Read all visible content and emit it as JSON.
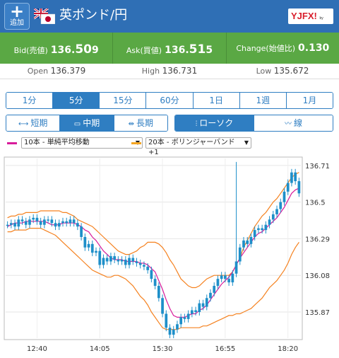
{
  "header": {
    "add_plus": "+",
    "add_label": "追加",
    "pair_title": "英ポンド/円",
    "logo_text": "YJFX!",
    "logo_sub": "by yahoo"
  },
  "quotes": [
    {
      "label": "Bid(売値)",
      "value_prefix": "136.",
      "value_big": "50",
      "value_suffix": "9"
    },
    {
      "label": "Ask(買値)",
      "value_prefix": "136.",
      "value_big": "51",
      "value_suffix": "5"
    },
    {
      "label": "Change(始値比)",
      "value_prefix": "0.130",
      "value_big": "",
      "value_suffix": ""
    }
  ],
  "ohl": [
    {
      "label": "Open",
      "value": "136.379"
    },
    {
      "label": "High",
      "value": "136.731"
    },
    {
      "label": "Low",
      "value": "135.672"
    }
  ],
  "timeframes": [
    "1分",
    "5分",
    "15分",
    "60分",
    "1日",
    "1週",
    "1月"
  ],
  "active_timeframe": 1,
  "spans": [
    {
      "icon": "⟷",
      "label": "短期"
    },
    {
      "icon": "▭",
      "label": "中期"
    },
    {
      "icon": "⇹",
      "label": "長期"
    }
  ],
  "active_span": 1,
  "chart_types": [
    {
      "icon": "candle-icon",
      "glyph": "⫶",
      "label": "ローソク"
    },
    {
      "icon": "line-icon",
      "glyph": "〰",
      "label": "線"
    }
  ],
  "active_chart_type": 0,
  "indicators": {
    "ma": {
      "color": "#d81b9b",
      "label": "10本 - 単純平均移動"
    },
    "bb": {
      "color": "#f5a623",
      "label": "20本 - ボリンジャーバンド+1"
    }
  },
  "colors": {
    "header_bg": "#2f6fb5",
    "quote_bg": "#5aa844",
    "accent": "#2f7ec2",
    "candle": "#1e8fc9",
    "ma_line": "#d81b9b",
    "bb_line": "#f58220"
  },
  "chart_data": {
    "type": "line",
    "y_ticks": [
      "136.71",
      "136.5",
      "136.29",
      "136.08",
      "135.87"
    ],
    "x_ticks": [
      "12:40",
      "14:05",
      "15:30",
      "16:55",
      "18:20"
    ],
    "ylim": [
      135.72,
      136.75
    ],
    "price": [
      136.37,
      136.38,
      136.36,
      136.4,
      136.39,
      136.37,
      136.4,
      136.41,
      136.39,
      136.37,
      136.4,
      136.4,
      136.38,
      136.36,
      136.38,
      136.39,
      136.38,
      136.4,
      136.38,
      136.36,
      136.3,
      136.24,
      136.26,
      136.21,
      136.22,
      136.14,
      136.18,
      136.16,
      136.19,
      136.17,
      136.16,
      136.17,
      136.14,
      136.18,
      136.16,
      136.15,
      136.14,
      136.13,
      136.11,
      136.06,
      136.02,
      135.95,
      135.86,
      135.78,
      135.74,
      135.77,
      135.8,
      135.84,
      135.83,
      135.86,
      135.88,
      135.87,
      135.92,
      135.9,
      135.95,
      135.98,
      136.02,
      136.06,
      136.08,
      136.06,
      136.04,
      136.09,
      136.16,
      136.24,
      136.28,
      136.26,
      136.3,
      136.34,
      136.35,
      136.34,
      136.37,
      136.4,
      136.43,
      136.46,
      136.5,
      136.56,
      136.61,
      136.67,
      136.62,
      136.55
    ],
    "ma10": [
      136.36,
      136.37,
      136.38,
      136.38,
      136.38,
      136.39,
      136.39,
      136.39,
      136.39,
      136.39,
      136.39,
      136.38,
      136.37,
      136.37,
      136.37,
      136.38,
      136.38,
      136.38,
      136.38,
      136.37,
      136.36,
      136.34,
      136.33,
      136.3,
      136.28,
      136.25,
      136.22,
      136.2,
      136.18,
      136.17,
      136.17,
      136.17,
      136.16,
      136.16,
      136.16,
      136.16,
      136.15,
      136.15,
      136.14,
      136.12,
      136.1,
      136.05,
      136.0,
      135.94,
      135.89,
      135.85,
      135.84,
      135.84,
      135.84,
      135.85,
      135.86,
      135.86,
      135.88,
      135.89,
      135.91,
      135.94,
      135.97,
      136.0,
      136.03,
      136.05,
      136.07,
      136.1,
      136.14,
      136.18,
      136.21,
      136.24,
      136.27,
      136.3,
      136.32,
      136.33,
      136.35,
      136.37,
      136.39,
      136.41,
      136.44,
      136.47,
      136.51,
      136.55,
      136.57,
      136.58
    ],
    "bb_upper": [
      136.41,
      136.42,
      136.42,
      136.43,
      136.43,
      136.44,
      136.44,
      136.44,
      136.44,
      136.45,
      136.45,
      136.45,
      136.45,
      136.45,
      136.45,
      136.44,
      136.44,
      136.43,
      136.42,
      136.4,
      136.39,
      136.38,
      136.37,
      136.36,
      136.34,
      136.32,
      136.3,
      136.28,
      136.26,
      136.24,
      136.22,
      136.21,
      136.2,
      136.2,
      136.21,
      136.22,
      136.24,
      136.25,
      136.27,
      136.27,
      136.27,
      136.26,
      136.24,
      136.21,
      136.17,
      136.14,
      136.1,
      136.06,
      136.04,
      136.02,
      136.01,
      136.01,
      136.02,
      136.04,
      136.06,
      136.07,
      136.08,
      136.08,
      136.08,
      136.08,
      136.08,
      136.1,
      136.14,
      136.18,
      136.24,
      136.28,
      136.32,
      136.36,
      136.39,
      136.42,
      136.44,
      136.47,
      136.5,
      136.52,
      136.55,
      136.58,
      136.61,
      136.64,
      136.66,
      136.67
    ],
    "bb_lower": [
      136.33,
      136.33,
      136.34,
      136.34,
      136.34,
      136.34,
      136.35,
      136.35,
      136.35,
      136.35,
      136.34,
      136.33,
      136.32,
      136.31,
      136.29,
      136.27,
      136.25,
      136.23,
      136.21,
      136.19,
      136.17,
      136.15,
      136.13,
      136.11,
      136.1,
      136.09,
      136.08,
      136.07,
      136.07,
      136.08,
      136.08,
      136.07,
      136.06,
      136.04,
      136.02,
      135.99,
      135.96,
      135.94,
      135.91,
      135.87,
      135.84,
      135.81,
      135.78,
      135.77,
      135.77,
      135.77,
      135.77,
      135.78,
      135.78,
      135.78,
      135.78,
      135.78,
      135.78,
      135.79,
      135.79,
      135.8,
      135.81,
      135.82,
      135.83,
      135.84,
      135.85,
      135.85,
      135.86,
      135.86,
      135.87,
      135.88,
      135.89,
      135.91,
      135.93,
      135.95,
      135.98,
      136.01,
      136.03,
      136.05,
      136.08,
      136.11,
      136.15,
      136.2,
      136.24,
      136.27
    ],
    "spike_high": 136.73,
    "spike_index": 62
  }
}
